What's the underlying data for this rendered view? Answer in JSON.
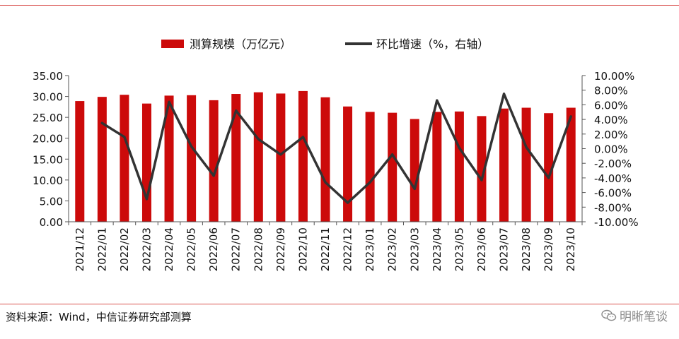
{
  "chart_data": {
    "type": "bar",
    "categories": [
      "2021/12",
      "2022/01",
      "2022/02",
      "2022/03",
      "2022/04",
      "2022/05",
      "2022/06",
      "2022/07",
      "2022/08",
      "2022/09",
      "2022/10",
      "2022/11",
      "2022/12",
      "2023/01",
      "2023/02",
      "2023/03",
      "2023/04",
      "2023/05",
      "2023/06",
      "2023/07",
      "2023/08",
      "2023/09",
      "2023/10"
    ],
    "series": [
      {
        "name": "测算规模（万亿元）",
        "type": "bar",
        "axis": "left",
        "color": "#cc0a0a",
        "values": [
          28.9,
          29.9,
          30.4,
          28.3,
          30.2,
          30.3,
          29.1,
          30.6,
          31.0,
          30.7,
          31.3,
          29.8,
          27.6,
          26.3,
          26.1,
          24.6,
          26.3,
          26.4,
          25.3,
          27.1,
          27.3,
          26.0,
          27.3
        ]
      },
      {
        "name": "环比增速（%，右轴）",
        "type": "line",
        "axis": "right",
        "color": "#333333",
        "values": [
          null,
          3.5,
          1.6,
          -6.9,
          6.4,
          0.3,
          -3.7,
          5.2,
          1.3,
          -0.8,
          1.6,
          -4.6,
          -7.4,
          -4.6,
          -0.8,
          -5.5,
          6.6,
          0.1,
          -4.3,
          7.5,
          0.2,
          -4.0,
          4.4
        ]
      }
    ],
    "y_left": {
      "ylim": [
        0,
        35
      ],
      "ticks": [
        "0.00",
        "5.00",
        "10.00",
        "15.00",
        "20.00",
        "25.00",
        "30.00",
        "35.00"
      ]
    },
    "y_right": {
      "ylim": [
        -10,
        10
      ],
      "ticks": [
        "-10.00%",
        "-8.00%",
        "-6.00%",
        "-4.00%",
        "-2.00%",
        "0.00%",
        "2.00%",
        "4.00%",
        "6.00%",
        "8.00%",
        "10.00%"
      ]
    },
    "legend_position": "top-center",
    "grid": false
  },
  "footer": {
    "source": "资料来源：Wind，中信证券研究部测算",
    "watermark": "明晰笔谈"
  }
}
